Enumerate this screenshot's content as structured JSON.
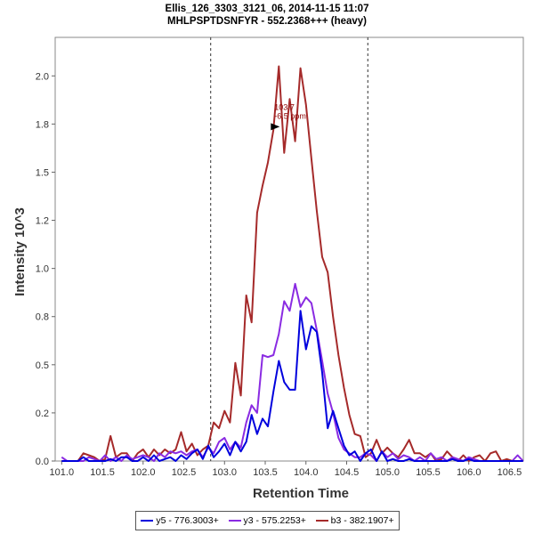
{
  "chart_data": {
    "type": "line",
    "title": "Ellis_126_3303_3121_06, 2014-11-15 11:07",
    "subtitle": "MHLPSPTDSNFYR - 552.2368+++ (heavy)",
    "xlabel": "Retention Time",
    "ylabel": "Intensity 10^3",
    "xlim": [
      100.92,
      106.67
    ],
    "ylim": [
      0,
      2.2
    ],
    "x_ticks": [
      101.0,
      101.5,
      102.0,
      102.5,
      103.0,
      103.5,
      104.0,
      104.5,
      105.0,
      105.5,
      106.0,
      106.5
    ],
    "x_tick_labels": [
      "101.0",
      "101.5",
      "102.0",
      "102.5",
      "103.0",
      "103.5",
      "104.0",
      "104.5",
      "105.0",
      "105.5",
      "106.0",
      "106.5"
    ],
    "y_ticks": [
      0.0,
      0.25,
      0.5,
      0.75,
      1.0,
      1.25,
      1.5,
      1.75,
      2.0
    ],
    "y_tick_labels": [
      "0.0",
      "0.2",
      "0.5",
      "0.8",
      "1.0",
      "1.2",
      "1.5",
      "1.8",
      "2.0"
    ],
    "integration_bounds": [
      102.83,
      104.76
    ],
    "grid": false,
    "legend_position": "bottom-center",
    "peak_annotation": {
      "x": 103.7,
      "y": 1.75,
      "line1": "103.7",
      "line2": "-6.5 ppm",
      "color": "#8B0000"
    },
    "x": [
      101.0,
      101.067,
      101.133,
      101.2,
      101.267,
      101.333,
      101.4,
      101.467,
      101.533,
      101.6,
      101.667,
      101.733,
      101.8,
      101.867,
      101.933,
      102.0,
      102.067,
      102.133,
      102.2,
      102.267,
      102.333,
      102.4,
      102.467,
      102.533,
      102.6,
      102.667,
      102.733,
      102.8,
      102.867,
      102.933,
      103.0,
      103.067,
      103.133,
      103.2,
      103.267,
      103.333,
      103.4,
      103.467,
      103.533,
      103.6,
      103.667,
      103.733,
      103.8,
      103.867,
      103.933,
      104.0,
      104.067,
      104.133,
      104.2,
      104.267,
      104.333,
      104.4,
      104.467,
      104.533,
      104.6,
      104.667,
      104.733,
      104.8,
      104.867,
      104.933,
      105.0,
      105.067,
      105.133,
      105.2,
      105.267,
      105.333,
      105.4,
      105.467,
      105.533,
      105.6,
      105.667,
      105.733,
      105.8,
      105.867,
      105.933,
      106.0,
      106.067,
      106.133,
      106.2,
      106.267,
      106.333,
      106.4,
      106.467,
      106.533,
      106.6,
      106.667
    ],
    "series": [
      {
        "name": "y5 - 776.3003+",
        "color": "#0000DD",
        "values": [
          0.0,
          0.0,
          0.0,
          0.0,
          0.02,
          0.0,
          0.0,
          0.0,
          0.0,
          0.01,
          0.0,
          0.02,
          0.02,
          0.0,
          0.0,
          0.02,
          0.0,
          0.03,
          0.0,
          0.01,
          0.02,
          0.0,
          0.03,
          0.01,
          0.04,
          0.06,
          0.01,
          0.08,
          0.02,
          0.05,
          0.09,
          0.03,
          0.1,
          0.05,
          0.1,
          0.24,
          0.14,
          0.22,
          0.18,
          0.36,
          0.52,
          0.41,
          0.37,
          0.37,
          0.78,
          0.58,
          0.7,
          0.67,
          0.46,
          0.17,
          0.26,
          0.17,
          0.08,
          0.03,
          0.05,
          0.0,
          0.04,
          0.06,
          0.0,
          0.05,
          0.0,
          0.01,
          0.0,
          0.0,
          0.01,
          0.0,
          0.0,
          0.0,
          0.0,
          0.0,
          0.0,
          0.0,
          0.01,
          0.0,
          0.0,
          0.01,
          0.0,
          0.0,
          0.0,
          0.0,
          0.0,
          0.0,
          0.0,
          0.0,
          0.0,
          0.0
        ]
      },
      {
        "name": "y3 - 575.2253+",
        "color": "#8A2BE2",
        "values": [
          0.02,
          0.0,
          0.0,
          0.0,
          0.0,
          0.02,
          0.01,
          0.0,
          0.03,
          0.0,
          0.02,
          0.0,
          0.03,
          0.01,
          0.02,
          0.03,
          0.02,
          0.0,
          0.04,
          0.02,
          0.05,
          0.04,
          0.05,
          0.03,
          0.05,
          0.06,
          0.02,
          0.07,
          0.04,
          0.1,
          0.12,
          0.06,
          0.1,
          0.07,
          0.2,
          0.29,
          0.25,
          0.55,
          0.54,
          0.55,
          0.66,
          0.83,
          0.78,
          0.92,
          0.8,
          0.85,
          0.82,
          0.68,
          0.52,
          0.35,
          0.25,
          0.12,
          0.06,
          0.04,
          0.02,
          0.02,
          0.04,
          0.03,
          0.0,
          0.05,
          0.02,
          0.04,
          0.01,
          0.03,
          0.02,
          0.0,
          0.02,
          0.0,
          0.04,
          0.01,
          0.02,
          0.0,
          0.02,
          0.01,
          0.0,
          0.02,
          0.01,
          0.0,
          0.0,
          0.0,
          0.0,
          0.0,
          0.0,
          0.0,
          0.03,
          0.0
        ]
      },
      {
        "name": "b3 - 382.1907+",
        "color": "#A52A2A",
        "values": [
          0.0,
          0.0,
          0.0,
          0.0,
          0.04,
          0.03,
          0.02,
          0.0,
          0.01,
          0.13,
          0.02,
          0.04,
          0.04,
          0.0,
          0.04,
          0.06,
          0.02,
          0.06,
          0.03,
          0.06,
          0.04,
          0.06,
          0.15,
          0.05,
          0.09,
          0.03,
          0.06,
          0.08,
          0.2,
          0.17,
          0.26,
          0.2,
          0.51,
          0.34,
          0.86,
          0.72,
          1.29,
          1.43,
          1.55,
          1.72,
          2.05,
          1.6,
          1.88,
          1.66,
          2.04,
          1.85,
          1.57,
          1.3,
          1.06,
          0.98,
          0.75,
          0.55,
          0.38,
          0.24,
          0.14,
          0.13,
          0.02,
          0.04,
          0.11,
          0.04,
          0.07,
          0.04,
          0.02,
          0.06,
          0.11,
          0.04,
          0.04,
          0.02,
          0.04,
          0.0,
          0.01,
          0.05,
          0.02,
          0.0,
          0.03,
          0.0,
          0.02,
          0.03,
          0.0,
          0.04,
          0.05,
          0.0,
          0.01,
          0.0,
          0.0,
          0.0
        ]
      }
    ]
  }
}
